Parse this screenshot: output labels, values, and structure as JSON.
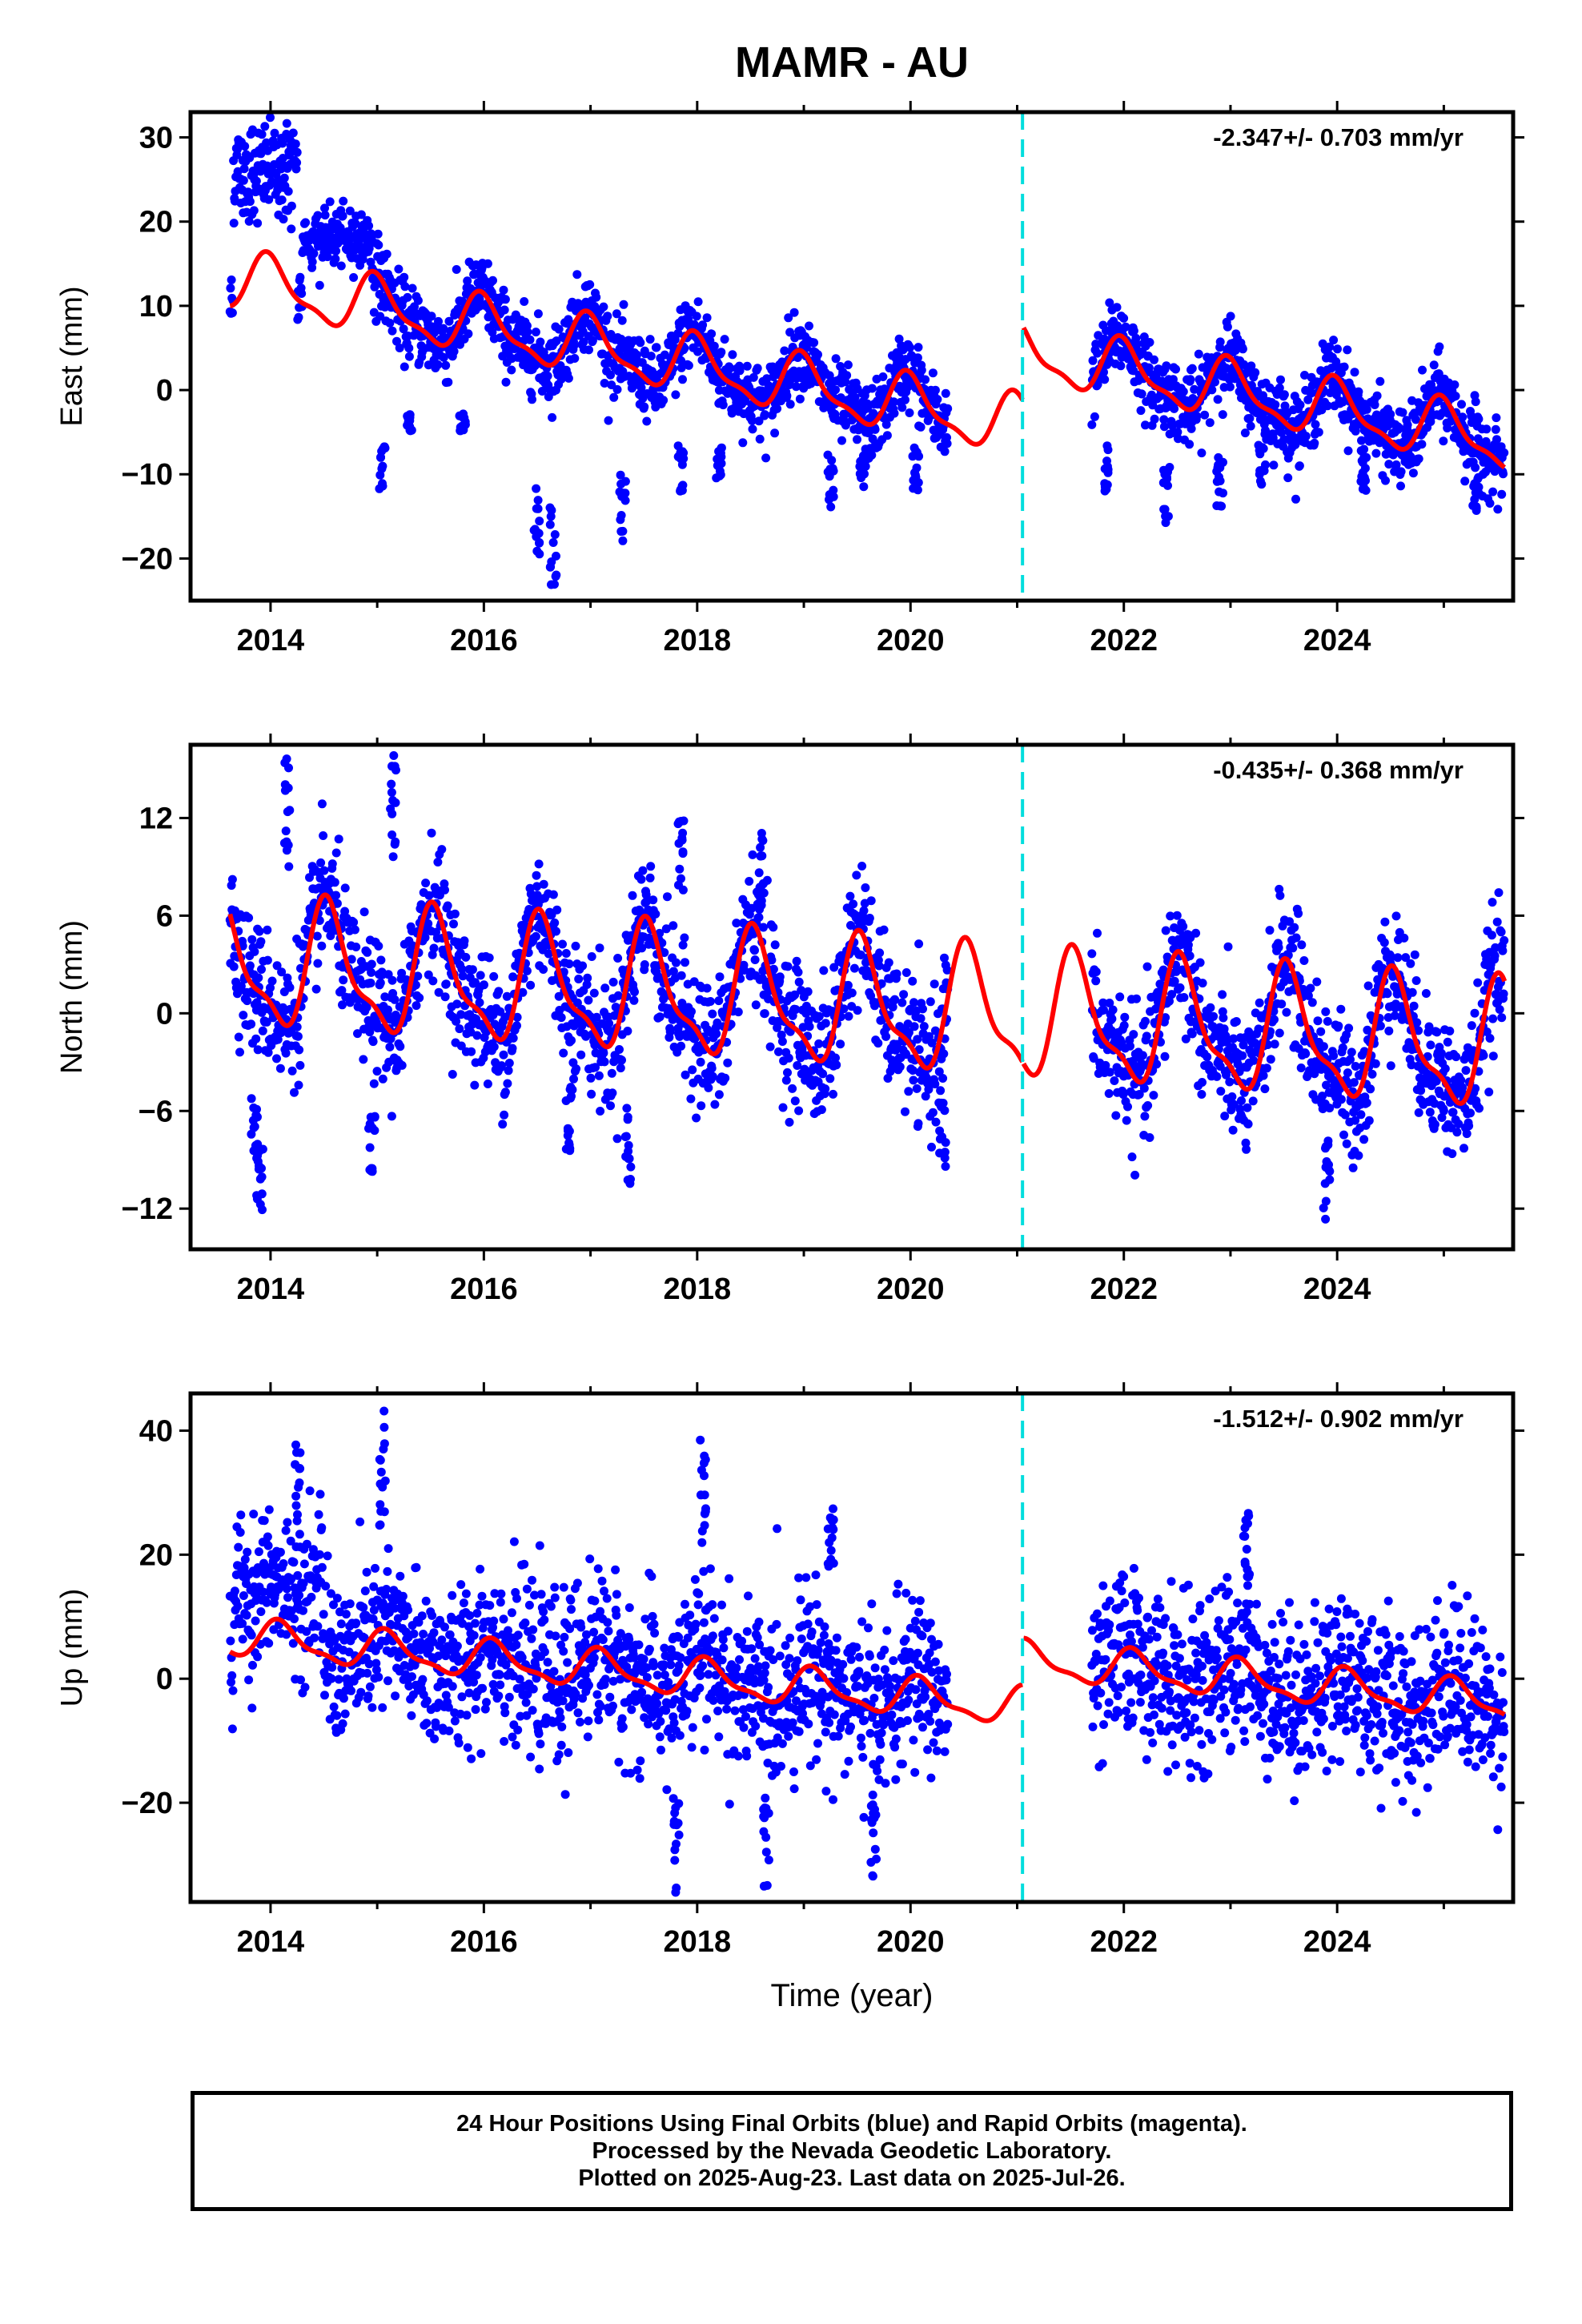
{
  "title": "MAMR - AU",
  "footer": {
    "line1": "24 Hour Positions Using Final Orbits (blue) and Rapid Orbits (magenta).",
    "line2": "Processed by the Nevada Geodetic Laboratory.",
    "line3": "Plotted on 2025-Aug-23. Last data on 2025-Jul-26."
  },
  "colors": {
    "points": "#0000ff",
    "model": "#ff0000",
    "break_line": "#00dddd"
  },
  "chart_data": [
    {
      "type": "scatter",
      "component": "East",
      "ylabel": "East (mm)",
      "xlabel": "",
      "rate_label": "-2.347+/- 0.703 mm/yr",
      "xlim": [
        2013.25,
        2025.65
      ],
      "ylim": [
        -25,
        33
      ],
      "yticks": [
        30,
        20,
        10,
        0,
        -10,
        -20
      ],
      "xticks": [
        2014,
        2016,
        2018,
        2020,
        2022,
        2024
      ],
      "equipment_change": 2021.05,
      "data_gap": [
        2020.35,
        2021.7
      ],
      "trend": {
        "rate": -2.347,
        "offset_at_2020": -1.9,
        "step_at_break": 8.8
      },
      "seasonal": {
        "annual_amp": 3.2,
        "annual_phase": 0.0
      },
      "early_segments": [
        {
          "x": [
            2013.65,
            2014.25
          ],
          "level": 26,
          "spread": 3.0
        },
        {
          "x": [
            2014.3,
            2014.95
          ],
          "level": 18,
          "spread": 1.6
        }
      ],
      "points": {
        "scatter_sd": 2.2,
        "dips": [
          {
            "x": 2015.05,
            "y": -12
          },
          {
            "x": 2015.3,
            "y": -5
          },
          {
            "x": 2015.8,
            "y": -5
          },
          {
            "x": 2016.5,
            "y": -20
          },
          {
            "x": 2016.65,
            "y": -24
          },
          {
            "x": 2017.3,
            "y": -18
          },
          {
            "x": 2017.85,
            "y": -12
          },
          {
            "x": 2018.2,
            "y": -12
          },
          {
            "x": 2019.25,
            "y": -14
          },
          {
            "x": 2019.55,
            "y": -12
          },
          {
            "x": 2020.05,
            "y": -12
          },
          {
            "x": 2021.85,
            "y": -12
          },
          {
            "x": 2022.4,
            "y": -16
          },
          {
            "x": 2022.9,
            "y": -14
          },
          {
            "x": 2023.3,
            "y": -12
          },
          {
            "x": 2024.25,
            "y": -12
          },
          {
            "x": 2025.3,
            "y": -16
          }
        ]
      }
    },
    {
      "type": "scatter",
      "component": "North",
      "ylabel": "North (mm)",
      "xlabel": "",
      "rate_label": "-0.435+/- 0.368 mm/yr",
      "xlim": [
        2013.25,
        2025.65
      ],
      "ylim": [
        -14.5,
        16.5
      ],
      "yticks": [
        12,
        6,
        0,
        -6,
        -12
      ],
      "xticks": [
        2014,
        2016,
        2018,
        2020,
        2022,
        2024
      ],
      "equipment_change": 2021.05,
      "data_gap": [
        2020.35,
        2021.7
      ],
      "trend": {
        "rate": -0.435,
        "offset_at_2020": 0.2,
        "step_at_break": 0.0
      },
      "seasonal": {
        "annual_amp": 3.6,
        "annual_phase": 0.55
      },
      "early_segments": [],
      "points": {
        "scatter_sd": 2.0,
        "dips": [
          {
            "x": 2013.9,
            "y": -12.5
          },
          {
            "x": 2013.85,
            "y": -9
          },
          {
            "x": 2014.95,
            "y": -10
          },
          {
            "x": 2016.8,
            "y": -8.5
          },
          {
            "x": 2017.35,
            "y": -10.5
          },
          {
            "x": 2020.3,
            "y": -10
          },
          {
            "x": 2023.9,
            "y": -13
          },
          {
            "x": 2014.15,
            "y": 16
          },
          {
            "x": 2015.15,
            "y": 16
          },
          {
            "x": 2018.6,
            "y": 12
          },
          {
            "x": 2017.85,
            "y": 12
          }
        ]
      }
    },
    {
      "type": "scatter",
      "component": "Up",
      "ylabel": "Up (mm)",
      "xlabel": "Time (year)",
      "rate_label": "-1.512+/- 0.902 mm/yr",
      "xlim": [
        2013.25,
        2025.65
      ],
      "ylim": [
        -36,
        46
      ],
      "yticks": [
        40,
        20,
        0,
        -20
      ],
      "xticks": [
        2014,
        2016,
        2018,
        2020,
        2022,
        2024
      ],
      "equipment_change": 2021.05,
      "data_gap": [
        2020.35,
        2021.7
      ],
      "trend": {
        "rate": -1.512,
        "offset_at_2020": -3.0,
        "step_at_break": 7.5
      },
      "seasonal": {
        "annual_amp": 2.8,
        "annual_phase": 0.1
      },
      "early_segments": [
        {
          "x": [
            2013.65,
            2014.5
          ],
          "level": 14,
          "spread": 6.0
        }
      ],
      "points": {
        "scatter_sd": 6.5,
        "dips": [
          {
            "x": 2015.05,
            "y": 44
          },
          {
            "x": 2018.05,
            "y": 39
          },
          {
            "x": 2014.25,
            "y": 38
          },
          {
            "x": 2017.8,
            "y": -35
          },
          {
            "x": 2018.65,
            "y": -35
          },
          {
            "x": 2019.65,
            "y": -32
          },
          {
            "x": 2019.25,
            "y": 30
          },
          {
            "x": 2023.15,
            "y": 29
          }
        ]
      }
    }
  ]
}
